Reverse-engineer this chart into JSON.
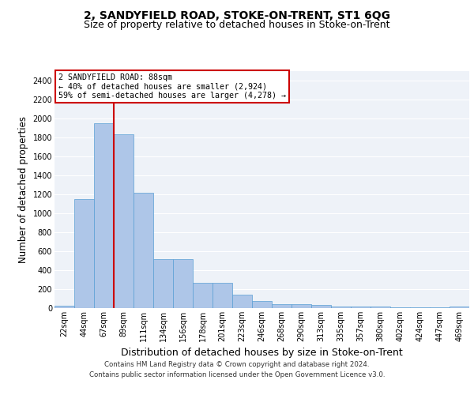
{
  "title": "2, SANDYFIELD ROAD, STOKE-ON-TRENT, ST1 6QG",
  "subtitle": "Size of property relative to detached houses in Stoke-on-Trent",
  "xlabel": "Distribution of detached houses by size in Stoke-on-Trent",
  "ylabel": "Number of detached properties",
  "categories": [
    "22sqm",
    "44sqm",
    "67sqm",
    "89sqm",
    "111sqm",
    "134sqm",
    "156sqm",
    "178sqm",
    "201sqm",
    "223sqm",
    "246sqm",
    "268sqm",
    "290sqm",
    "313sqm",
    "335sqm",
    "357sqm",
    "380sqm",
    "402sqm",
    "424sqm",
    "447sqm",
    "469sqm"
  ],
  "values": [
    25,
    1150,
    1950,
    1830,
    1220,
    515,
    515,
    270,
    270,
    145,
    75,
    45,
    45,
    30,
    20,
    15,
    15,
    10,
    10,
    10,
    20
  ],
  "bar_color": "#aec6e8",
  "bar_edge_color": "#5a9fd4",
  "vline_x_index": 3,
  "vline_color": "#cc0000",
  "annotation_text": "2 SANDYFIELD ROAD: 88sqm\n← 40% of detached houses are smaller (2,924)\n59% of semi-detached houses are larger (4,278) →",
  "annotation_box_color": "#ffffff",
  "annotation_box_edge_color": "#cc0000",
  "ylim": [
    0,
    2500
  ],
  "yticks": [
    0,
    200,
    400,
    600,
    800,
    1000,
    1200,
    1400,
    1600,
    1800,
    2000,
    2200,
    2400
  ],
  "footer_line1": "Contains HM Land Registry data © Crown copyright and database right 2024.",
  "footer_line2": "Contains public sector information licensed under the Open Government Licence v3.0.",
  "bg_color": "#eef2f8",
  "grid_color": "#ffffff",
  "title_fontsize": 10,
  "subtitle_fontsize": 9,
  "tick_fontsize": 7,
  "ylabel_fontsize": 8.5,
  "xlabel_fontsize": 9,
  "footer_fontsize": 6.2
}
